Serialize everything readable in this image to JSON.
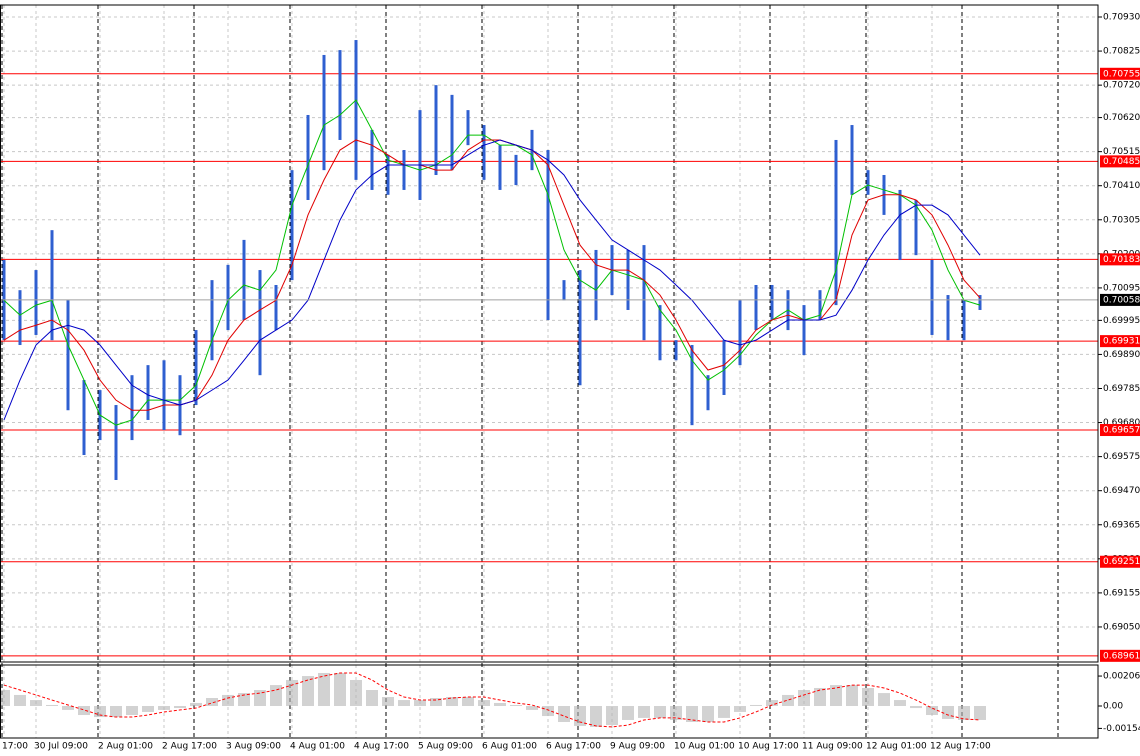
{
  "chart_data": [
    {
      "type": "hilo",
      "categories": [
        "17:00",
        null,
        "30 Jul 09:00",
        null,
        null,
        null,
        "2 Aug 01:00",
        null,
        null,
        null,
        "2 Aug 17:00",
        null,
        null,
        null,
        "3 Aug 09:00",
        null,
        null,
        null,
        "4 Aug 01:00",
        null,
        null,
        null,
        "4 Aug 17:00",
        null,
        null,
        null,
        "5 Aug 09:00",
        null,
        null,
        null,
        "6 Aug 01:00",
        null,
        null,
        null,
        "6 Aug 17:00",
        null,
        null,
        null,
        "9 Aug 09:00",
        null,
        null,
        null,
        "10 Aug 01:00",
        null,
        null,
        null,
        "10 Aug 17:00",
        null,
        null,
        null,
        "11 Aug 09:00",
        null,
        null,
        null,
        "12 Aug 01:00",
        null,
        null,
        null,
        "12 Aug 17:00",
        null,
        null,
        null
      ],
      "high": [
        0.70181,
        0.70088,
        0.7015,
        0.70273,
        0.70057,
        0.69811,
        0.6978,
        0.69734,
        0.69826,
        0.69857,
        0.69872,
        0.69826,
        0.69965,
        0.70119,
        0.70166,
        0.70243,
        0.7015,
        0.70104,
        0.70458,
        0.70628,
        0.70813,
        0.70828,
        0.70859,
        0.70582,
        0.70505,
        0.7052,
        0.70643,
        0.7072,
        0.7069,
        0.70643,
        0.70597,
        0.70535,
        0.70505,
        0.70582,
        0.7052,
        0.70119,
        0.7015,
        0.70212,
        0.70227,
        0.70212,
        0.70227,
        0.70042,
        0.69934,
        0.69919,
        0.69826,
        0.69934,
        0.70057,
        0.70104,
        0.70104,
        0.70088,
        0.70042,
        0.70088,
        0.70551,
        0.70597,
        0.70458,
        0.70443,
        0.70397,
        0.70366,
        0.70181,
        0.70073,
        0.70057,
        0.70073
      ],
      "low": [
        0.69934,
        0.69919,
        0.6995,
        0.69934,
        0.69718,
        0.6958,
        0.69626,
        0.69503,
        0.69626,
        0.69688,
        0.69657,
        0.69641,
        0.69734,
        0.69872,
        0.69965,
        0.69996,
        0.69826,
        0.69965,
        0.70119,
        0.70366,
        0.70458,
        0.70551,
        0.70428,
        0.70397,
        0.70382,
        0.70397,
        0.70366,
        0.70443,
        0.70458,
        0.70535,
        0.70428,
        0.70397,
        0.70412,
        0.70458,
        0.69996,
        0.70057,
        0.69795,
        0.69996,
        0.70073,
        0.70027,
        0.69934,
        0.69872,
        0.69872,
        0.69672,
        0.69718,
        0.69765,
        0.69857,
        0.69965,
        0.69996,
        0.69965,
        0.69888,
        0.69996,
        0.70042,
        0.70382,
        0.70382,
        0.7032,
        0.70181,
        0.70196,
        0.6995,
        0.69934,
        0.69934,
        0.70027
      ],
      "color": "#2f5fd0",
      "lines": [
        {
          "color": "#00c000",
          "values": [
            0.70057,
            0.70011,
            0.70042,
            0.70057,
            0.69919,
            0.69811,
            0.69703,
            0.69672,
            0.69688,
            0.69749,
            0.69749,
            0.69749,
            0.69795,
            0.69934,
            0.70057,
            0.70104,
            0.70088,
            0.7015,
            0.7035,
            0.70474,
            0.70597,
            0.70628,
            0.70674,
            0.70582,
            0.70489,
            0.70474,
            0.70458,
            0.70474,
            0.70505,
            0.70566,
            0.70566,
            0.70535,
            0.70535,
            0.70505,
            0.70382,
            0.70212,
            0.70119,
            0.70088,
            0.7015,
            0.70135,
            0.70119,
            0.70027,
            0.69965,
            0.69872,
            0.69811,
            0.69842,
            0.69888,
            0.6995,
            0.69996,
            0.70027,
            0.69996,
            0.70011,
            0.7015,
            0.70382,
            0.70412,
            0.70397,
            0.70382,
            0.7035,
            0.70273,
            0.7015,
            0.70057,
            0.70042
          ]
        },
        {
          "color": "#e00000",
          "values": [
            0.69934,
            0.69965,
            0.6998,
            0.69996,
            0.69965,
            0.69903,
            0.69811,
            0.69749,
            0.69718,
            0.69718,
            0.69734,
            0.69734,
            0.69749,
            0.69826,
            0.69934,
            0.69996,
            0.70027,
            0.70057,
            0.70166,
            0.7032,
            0.70428,
            0.7052,
            0.70551,
            0.70535,
            0.70505,
            0.70474,
            0.70474,
            0.70458,
            0.70458,
            0.7052,
            0.70551,
            0.70551,
            0.70535,
            0.7052,
            0.70474,
            0.7035,
            0.70227,
            0.70166,
            0.7015,
            0.7015,
            0.70119,
            0.70073,
            0.69996,
            0.69903,
            0.69842,
            0.69857,
            0.69903,
            0.69965,
            0.69996,
            0.70011,
            0.69996,
            0.69996,
            0.70057,
            0.70258,
            0.70366,
            0.70382,
            0.70382,
            0.70366,
            0.7032,
            0.70227,
            0.70119,
            0.70064
          ]
        },
        {
          "color": "#0000c8",
          "values": [
            0.69688,
            0.69811,
            0.69919,
            0.69965,
            0.6998,
            0.69965,
            0.69919,
            0.69857,
            0.69795,
            0.69765,
            0.69749,
            0.69734,
            0.69749,
            0.6978,
            0.69811,
            0.69872,
            0.69934,
            0.69965,
            0.69996,
            0.70057,
            0.70181,
            0.70304,
            0.70397,
            0.70443,
            0.70474,
            0.70474,
            0.70474,
            0.70474,
            0.70474,
            0.70505,
            0.70535,
            0.70551,
            0.70535,
            0.7052,
            0.70489,
            0.70443,
            0.70366,
            0.70304,
            0.70243,
            0.70212,
            0.70181,
            0.7015,
            0.70104,
            0.70057,
            0.69996,
            0.69934,
            0.69919,
            0.69934,
            0.69965,
            0.69996,
            0.69996,
            0.69996,
            0.70011,
            0.70088,
            0.70181,
            0.70258,
            0.7032,
            0.7035,
            0.7035,
            0.7032,
            0.70258,
            0.70196
          ]
        }
      ],
      "ylim": [
        0.68942,
        0.70967
      ],
      "yticks": [
        {
          "value": 0.7093,
          "label": "0.70930"
        },
        0.70825,
        {
          "value": 0.7072,
          "label": "0.70720"
        },
        {
          "value": 0.7062,
          "label": "0.70620"
        },
        0.70515,
        {
          "value": 0.7041,
          "label": "0.70410"
        },
        0.70305,
        {
          "value": 0.702,
          "label": "0.70200"
        },
        0.70095,
        0.69995,
        {
          "value": 0.6989,
          "label": "0.69890"
        },
        0.69785,
        {
          "value": 0.6968,
          "label": "0.69680"
        },
        0.69575,
        {
          "value": 0.6947,
          "label": "0.69470"
        },
        0.69365,
        {
          "value": 0.6926,
          "label": "0.69260"
        },
        0.69155,
        {
          "value": 0.6905,
          "label": "0.69050"
        }
      ],
      "grid": true,
      "levels": [
        0.70755,
        0.70485,
        0.70183,
        0.69931,
        0.69657,
        0.69251,
        0.68961
      ],
      "level_color": "#ff0000",
      "last_price": 0.70058
    },
    {
      "type": "macd",
      "histogram": [
        0.0011,
        0.00076,
        0.00041,
        7e-05,
        -0.00027,
        -0.00062,
        -0.00076,
        -0.00076,
        -0.00062,
        -0.00041,
        -0.00027,
        -0.00014,
        0.00021,
        0.00055,
        0.00076,
        0.00089,
        0.0011,
        0.00144,
        0.00179,
        0.00206,
        0.00227,
        0.00227,
        0.00179,
        0.0011,
        0.00062,
        0.00041,
        0.00041,
        0.00055,
        0.00062,
        0.00062,
        0.00041,
        0.00021,
        7e-05,
        -0.00027,
        -0.00069,
        -0.0011,
        -0.00137,
        -0.00144,
        -0.00131,
        -0.00096,
        -0.00082,
        -0.00082,
        -0.00096,
        -0.0011,
        -0.0011,
        -0.00082,
        -0.00041,
        7e-05,
        0.00041,
        0.00076,
        0.0011,
        0.00124,
        0.00144,
        0.00144,
        0.00124,
        0.00089,
        0.00041,
        -0.00014,
        -0.00062,
        -0.00089,
        -0.00096,
        -0.00096
      ],
      "histogram_color": "#b4b4b4",
      "signal": [
        0.00144,
        0.0011,
        0.00076,
        0.00041,
        7e-05,
        -0.00027,
        -0.00062,
        -0.00076,
        -0.00076,
        -0.00062,
        -0.00041,
        -0.00027,
        -0.00014,
        0.00021,
        0.00055,
        0.00076,
        0.00089,
        0.0011,
        0.00144,
        0.00179,
        0.00206,
        0.00227,
        0.00227,
        0.00179,
        0.0011,
        0.00062,
        0.00041,
        0.00041,
        0.00055,
        0.00062,
        0.00062,
        0.00041,
        0.00021,
        7e-05,
        -0.00027,
        -0.00069,
        -0.0011,
        -0.00137,
        -0.00144,
        -0.00131,
        -0.00096,
        -0.00082,
        -0.00082,
        -0.00096,
        -0.0011,
        -0.0011,
        -0.00082,
        -0.00041,
        7e-05,
        0.00041,
        0.00076,
        0.0011,
        0.00124,
        0.00144,
        0.00144,
        0.00124,
        0.00089,
        0.00041,
        -0.00014,
        -0.00062,
        -0.00089,
        -0.00096
      ],
      "signal_color": "#ff0000",
      "ylim": [
        -0.0022,
        0.00282
      ],
      "yticks": [
        0.00206,
        {
          "value": 0,
          "label": "0.00"
        },
        -0.00154
      ]
    }
  ]
}
